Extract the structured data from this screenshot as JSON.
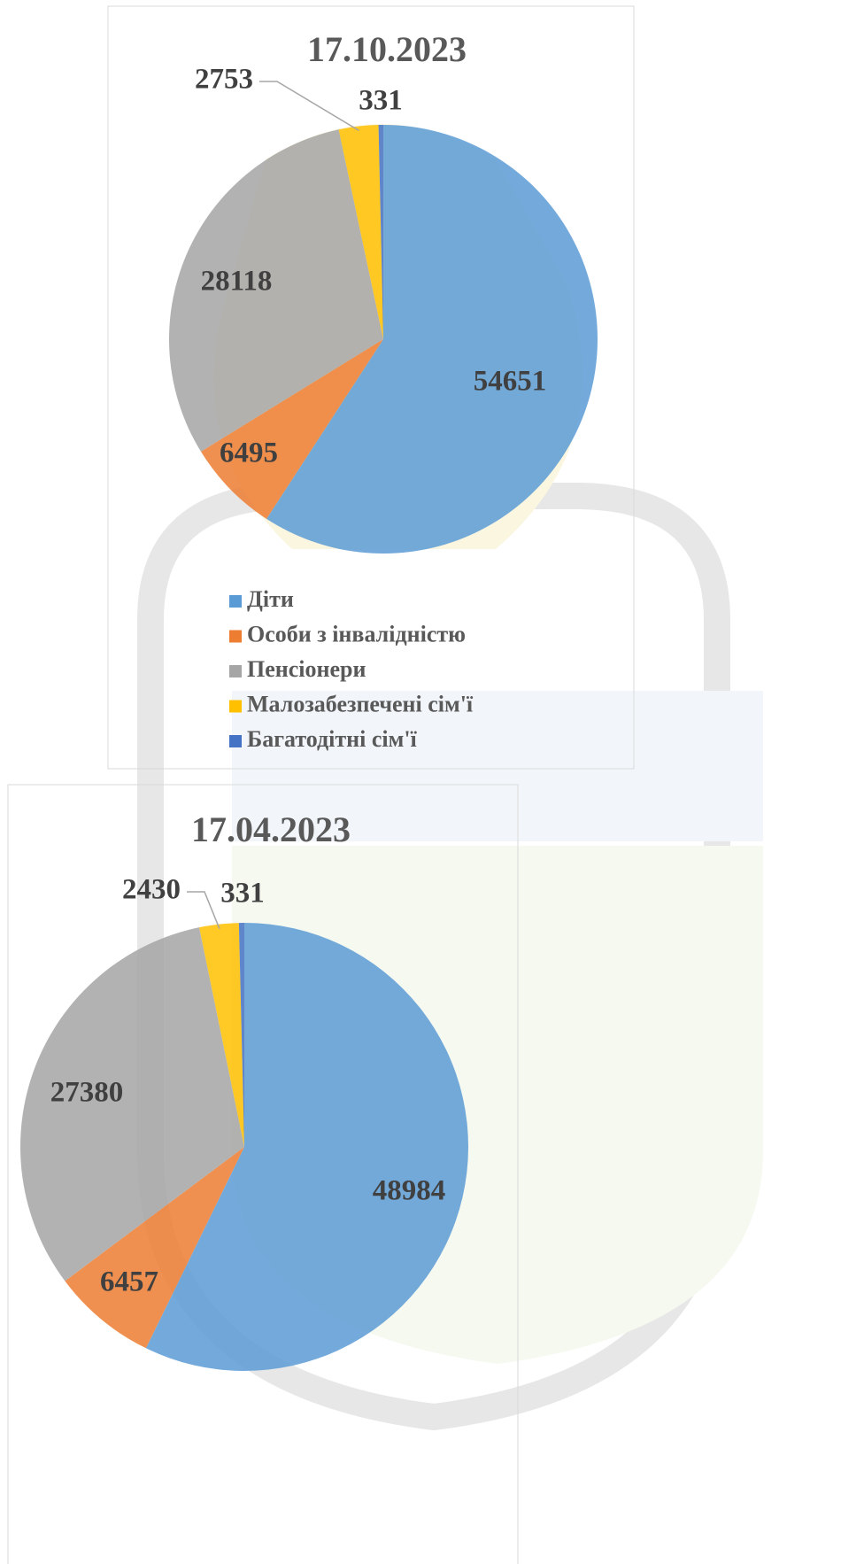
{
  "chart_data": [
    {
      "type": "pie",
      "title": "17.10.2023",
      "categories": [
        "Діти",
        "Особи з інвалідністю",
        "Пенсіонери",
        "Малозабезпечені сім'ї",
        "Багатодітні сім'ї"
      ],
      "values": [
        54651,
        6495,
        28118,
        2753,
        331
      ],
      "colors": [
        "#5b9bd5",
        "#ed7d31",
        "#a5a5a5",
        "#ffc000",
        "#4472c4"
      ],
      "legend": true
    },
    {
      "type": "pie",
      "title": "17.04.2023",
      "values": [
        48984,
        6457,
        27380,
        2430,
        331
      ],
      "colors": [
        "#5b9bd5",
        "#ed7d31",
        "#a5a5a5",
        "#ffc000",
        "#4472c4"
      ],
      "legend": false
    }
  ]
}
